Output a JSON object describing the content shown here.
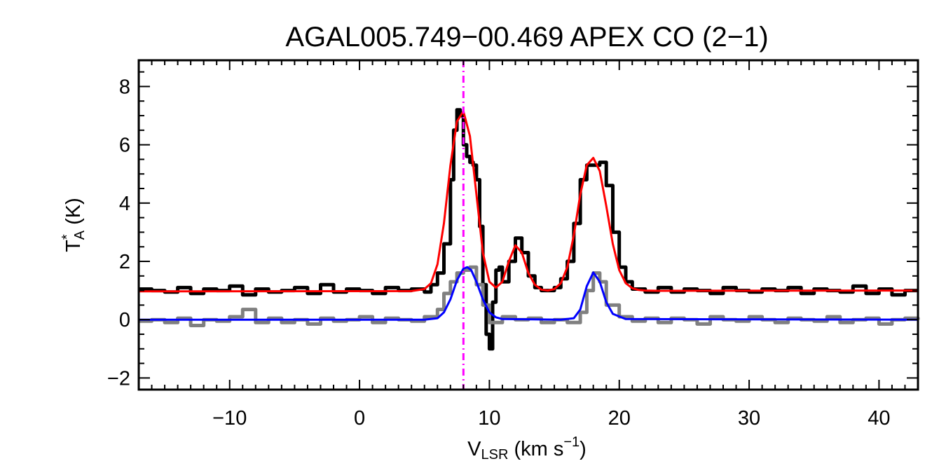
{
  "chart_data": {
    "type": "line",
    "title": "AGAL005.749−00.469  APEX CO (2−1)",
    "xlabel": {
      "main": "V",
      "sub": "LSR",
      "rest": " (km s",
      "sup": "−1",
      "close": ")"
    },
    "ylabel": {
      "main": "T",
      "sup": "*",
      "sub": "A",
      "rest": " (K)"
    },
    "xlim": [
      -17,
      43
    ],
    "ylim": [
      -2.4,
      8.9
    ],
    "x_ticks": [
      -10,
      0,
      10,
      20,
      30,
      40
    ],
    "x_tick_labels": [
      "−10",
      "0",
      "10",
      "20",
      "30",
      "40"
    ],
    "x_minor_step": 1,
    "y_ticks": [
      -2,
      0,
      2,
      4,
      6,
      8
    ],
    "y_tick_labels": [
      "−2",
      "0",
      "2",
      "4",
      "6",
      "8"
    ],
    "y_minor_step": 0.5,
    "grid": false,
    "vline": {
      "x": 8.0,
      "color": "#ff00ff"
    },
    "colors": {
      "observed": "#000000",
      "residual": "#808080",
      "fit": "#ff0000",
      "component": "#0000ff"
    },
    "series": [
      {
        "role": "observed",
        "style": "step",
        "x": [
          -17,
          -16,
          -15,
          -14,
          -13,
          -12,
          -11,
          -10,
          -9,
          -8,
          -7,
          -6,
          -5,
          -4,
          -3,
          -2,
          -1,
          0,
          1,
          2,
          3,
          4,
          5,
          5.5,
          6,
          6.5,
          7,
          7.25,
          7.5,
          7.75,
          8,
          8.25,
          8.5,
          8.75,
          9,
          9.25,
          9.5,
          9.75,
          10,
          10.25,
          10.5,
          10.75,
          11,
          11.5,
          12,
          12.5,
          13,
          13.5,
          14,
          15,
          15.5,
          16,
          16.5,
          17,
          17.5,
          18,
          18.5,
          19,
          19.5,
          20,
          20.5,
          21,
          22,
          23,
          24,
          25,
          26,
          27,
          28,
          29,
          30,
          31,
          32,
          33,
          34,
          35,
          36,
          37,
          38,
          39,
          40,
          41,
          42,
          43
        ],
        "y": [
          1.05,
          1.0,
          0.95,
          1.1,
          0.9,
          1.05,
          1.0,
          1.15,
          0.85,
          1.05,
          0.95,
          1.0,
          1.1,
          0.9,
          1.2,
          0.95,
          1.05,
          1.0,
          0.9,
          1.1,
          1.0,
          1.05,
          0.95,
          1.2,
          1.6,
          2.6,
          4.8,
          6.5,
          7.2,
          7.0,
          6.0,
          5.6,
          5.4,
          5.3,
          4.8,
          3.2,
          1.2,
          -0.5,
          -1.0,
          0.6,
          1.7,
          1.8,
          1.3,
          2.0,
          2.8,
          2.3,
          1.5,
          1.1,
          1.0,
          1.1,
          1.4,
          2.0,
          3.3,
          4.8,
          5.3,
          5.3,
          5.4,
          4.6,
          3.0,
          1.8,
          1.3,
          1.05,
          0.95,
          1.1,
          0.95,
          1.05,
          1.0,
          0.9,
          1.1,
          1.0,
          0.95,
          1.05,
          1.0,
          1.1,
          0.9,
          1.05,
          1.0,
          0.95,
          1.15,
          0.9,
          1.05,
          0.85,
          1.0,
          1.0
        ]
      },
      {
        "role": "residual",
        "style": "step",
        "x": [
          -17,
          -16,
          -15,
          -14,
          -13,
          -12,
          -11,
          -10,
          -9,
          -8,
          -7,
          -6,
          -5,
          -4,
          -3,
          -2,
          -1,
          0,
          1,
          2,
          3,
          4,
          5,
          6,
          6.5,
          7,
          7.5,
          8,
          8.5,
          9,
          9.5,
          10,
          11,
          12,
          13,
          14,
          15,
          16,
          17,
          17.5,
          18,
          18.5,
          19,
          20,
          21,
          22,
          23,
          24,
          25,
          26,
          27,
          28,
          29,
          30,
          31,
          32,
          33,
          34,
          35,
          36,
          37,
          38,
          39,
          40,
          41,
          42,
          43
        ],
        "y": [
          -0.05,
          0.0,
          -0.1,
          0.05,
          -0.2,
          0.0,
          -0.05,
          0.1,
          0.35,
          -0.1,
          0.05,
          -0.1,
          0.0,
          -0.15,
          0.05,
          -0.05,
          0.0,
          0.1,
          -0.1,
          0.05,
          0.0,
          -0.05,
          0.1,
          0.35,
          0.9,
          1.3,
          1.6,
          1.7,
          1.8,
          1.2,
          0.5,
          -0.1,
          0.1,
          0.0,
          0.05,
          -0.1,
          0.0,
          -0.1,
          0.25,
          1.0,
          1.6,
          1.3,
          0.5,
          0.1,
          -0.05,
          0.05,
          -0.1,
          0.05,
          0.0,
          -0.15,
          0.1,
          0.0,
          -0.05,
          0.1,
          0.0,
          -0.1,
          0.05,
          0.0,
          -0.05,
          0.1,
          -0.1,
          0.0,
          0.05,
          -0.15,
          0.0,
          0.05,
          0.0
        ]
      },
      {
        "role": "fit",
        "style": "smooth",
        "x": [
          -17,
          4,
          5,
          5.5,
          6,
          6.5,
          7,
          7.5,
          8,
          8.5,
          9,
          9.5,
          10,
          10.5,
          11,
          11.5,
          12,
          12.5,
          13,
          13.5,
          14,
          14.5,
          15,
          15.5,
          16,
          16.5,
          17,
          17.5,
          18,
          18.5,
          19,
          19.5,
          20,
          20.5,
          21,
          21.5,
          22,
          23,
          43
        ],
        "y": [
          0.97,
          0.98,
          1.05,
          1.25,
          1.9,
          3.3,
          5.3,
          6.8,
          7.15,
          6.3,
          4.3,
          2.3,
          1.3,
          1.1,
          1.3,
          2.0,
          2.55,
          2.3,
          1.6,
          1.2,
          1.03,
          1.0,
          1.05,
          1.25,
          1.8,
          2.9,
          4.3,
          5.3,
          5.55,
          5.1,
          3.9,
          2.6,
          1.7,
          1.25,
          1.08,
          1.02,
          1.0,
          0.99,
          1.0
        ]
      },
      {
        "role": "component",
        "style": "smooth",
        "x": [
          -17,
          5,
          6,
          6.5,
          7,
          7.5,
          8,
          8.3,
          8.6,
          9,
          9.5,
          10,
          10.5,
          11,
          15.5,
          16.5,
          17,
          17.5,
          18,
          18.5,
          19,
          19.5,
          20.5,
          43
        ],
        "y": [
          0.0,
          0.0,
          0.05,
          0.25,
          0.7,
          1.35,
          1.75,
          1.8,
          1.7,
          1.3,
          0.7,
          0.25,
          0.08,
          0.02,
          0.0,
          0.05,
          0.35,
          1.15,
          1.62,
          1.3,
          0.6,
          0.2,
          0.02,
          0.0
        ]
      }
    ]
  }
}
